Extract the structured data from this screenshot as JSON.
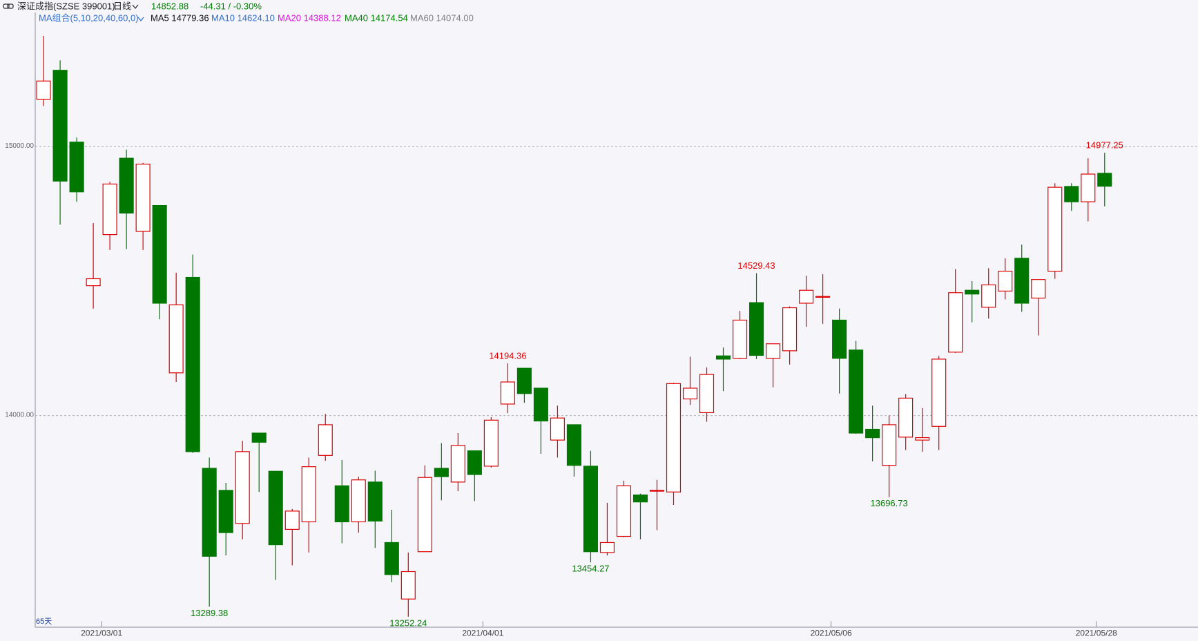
{
  "header": {
    "name": "深证成指(SZSE 399001)",
    "period": "日线",
    "price": "14852.88",
    "change": "-44.31 / -0.30%",
    "ma_group": "MA组合(5,10,20,40,60,0)",
    "ma": [
      {
        "text": "MA5 14779.36",
        "color": "#111111"
      },
      {
        "text": "MA10 14624.10",
        "color": "#2f6fd0"
      },
      {
        "text": "MA20 14388.12",
        "color": "#e010e0"
      },
      {
        "text": "MA40 14174.54",
        "color": "#008000"
      },
      {
        "text": "MA60 14074.00",
        "color": "#808080"
      }
    ],
    "days": "65天"
  },
  "chart_data": {
    "type": "candlestick",
    "up_color": "#e00000",
    "down_color": "#007800",
    "grid": true,
    "ylim": [
      13215,
      15497
    ],
    "yticks": [
      {
        "value": 14000,
        "label": "14000.00"
      },
      {
        "value": 15000,
        "label": "15000.00"
      }
    ],
    "categories": [
      null,
      null,
      null,
      null,
      "2021/03/01",
      null,
      null,
      null,
      null,
      null,
      null,
      null,
      null,
      null,
      null,
      null,
      null,
      null,
      null,
      null,
      null,
      null,
      null,
      null,
      null,
      null,
      null,
      "2021/04/01",
      null,
      null,
      null,
      null,
      null,
      null,
      null,
      null,
      null,
      null,
      null,
      null,
      null,
      null,
      null,
      null,
      null,
      null,
      null,
      null,
      "2021/05/06",
      null,
      null,
      null,
      null,
      null,
      null,
      null,
      null,
      null,
      null,
      null,
      null,
      null,
      null,
      null,
      "2021/05/28"
    ],
    "open": [
      15176,
      15284,
      15017,
      14483,
      14673,
      14957,
      14685,
      14781,
      14159,
      14514,
      13804,
      13722,
      13599,
      13935,
      13793,
      13577,
      13605,
      13852,
      13739,
      13605,
      13753,
      13528,
      13318,
      13494,
      13804,
      13753,
      13869,
      13812,
      14043,
      14176,
      14102,
      13909,
      13966,
      13812,
      13491,
      13551,
      13705,
      13719,
      13716,
      14062,
      14011,
      14222,
      14213,
      14420,
      14213,
      14241,
      14418,
      14440,
      14355,
      14244,
      13949,
      13815,
      13920,
      13909,
      13960,
      14236,
      14466,
      14403,
      14463,
      14585,
      14437,
      14537,
      14852,
      14795,
      14901
    ],
    "close": [
      15244,
      14872,
      14832,
      14509,
      14861,
      14753,
      14935,
      14418,
      14412,
      13866,
      13477,
      13565,
      13866,
      13901,
      13520,
      13645,
      13810,
      13966,
      13605,
      13761,
      13608,
      13409,
      13420,
      13770,
      13773,
      13889,
      13781,
      13983,
      14125,
      14082,
      13980,
      13991,
      13815,
      13494,
      13528,
      13739,
      13679,
      13722,
      14119,
      14102,
      14153,
      14210,
      14355,
      14224,
      14267,
      14401,
      14466,
      14443,
      14213,
      13935,
      13918,
      13966,
      14065,
      13918,
      14210,
      14457,
      14452,
      14486,
      14537,
      14418,
      14506,
      14849,
      14795,
      14898,
      14852.88
    ],
    "high": [
      15412,
      15321,
      15034,
      14716,
      14869,
      14989,
      14940,
      14781,
      14531,
      14599,
      13844,
      13750,
      13906,
      13935,
      13793,
      13653,
      13844,
      14006,
      13835,
      13773,
      13795,
      13650,
      13491,
      13815,
      13898,
      13935,
      13869,
      13994,
      14194.36,
      14176,
      14102,
      14037,
      13966,
      13869,
      13676,
      13758,
      13710,
      13761,
      14122,
      14219,
      14179,
      14253,
      14389,
      14529.43,
      14267,
      14406,
      14520,
      14526,
      14398,
      14278,
      14037,
      14000,
      14080,
      14028,
      14222,
      14545,
      14500,
      14548,
      14585,
      14636,
      14506,
      14864,
      14864,
      14957,
      14977.25
    ],
    "low": [
      15151,
      14710,
      14795,
      14398,
      14616,
      14619,
      14616,
      14358,
      14125,
      13861,
      13289.38,
      13480,
      13540,
      13716,
      13389,
      13443,
      13491,
      13832,
      13525,
      13565,
      13508,
      13381,
      13252.24,
      13494,
      13685,
      13719,
      13682,
      13807,
      14009,
      14048,
      13858,
      13844,
      13773,
      13454.27,
      13480,
      13548,
      13540,
      13574,
      13668,
      14040,
      13977,
      14091,
      14210,
      14210,
      14105,
      14190,
      14330,
      14341,
      14082,
      13932,
      13830,
      13696.73,
      13872,
      13866,
      13872,
      14233,
      14347,
      14361,
      14432,
      14386,
      14298,
      14509,
      14761,
      14722,
      14778
    ],
    "high_labels": [
      null,
      null,
      null,
      null,
      null,
      null,
      null,
      null,
      null,
      null,
      null,
      null,
      null,
      null,
      null,
      null,
      null,
      null,
      null,
      null,
      null,
      null,
      null,
      null,
      null,
      null,
      null,
      null,
      "14194.36",
      null,
      null,
      null,
      null,
      null,
      null,
      null,
      null,
      null,
      null,
      null,
      null,
      null,
      null,
      "14529.43",
      null,
      null,
      null,
      null,
      null,
      null,
      null,
      null,
      null,
      null,
      null,
      null,
      null,
      null,
      null,
      null,
      null,
      null,
      null,
      null,
      "14977.25"
    ],
    "low_labels": [
      null,
      null,
      null,
      null,
      null,
      null,
      null,
      null,
      null,
      null,
      "13289.38",
      null,
      null,
      null,
      null,
      null,
      null,
      null,
      null,
      null,
      null,
      null,
      "13252.24",
      null,
      null,
      null,
      null,
      null,
      null,
      null,
      null,
      null,
      null,
      "13454.27",
      null,
      null,
      null,
      null,
      null,
      null,
      null,
      null,
      null,
      null,
      null,
      null,
      null,
      null,
      null,
      null,
      null,
      "13696.73",
      null,
      null,
      null,
      null,
      null,
      null,
      null,
      null,
      null,
      null,
      null,
      null,
      null
    ]
  }
}
